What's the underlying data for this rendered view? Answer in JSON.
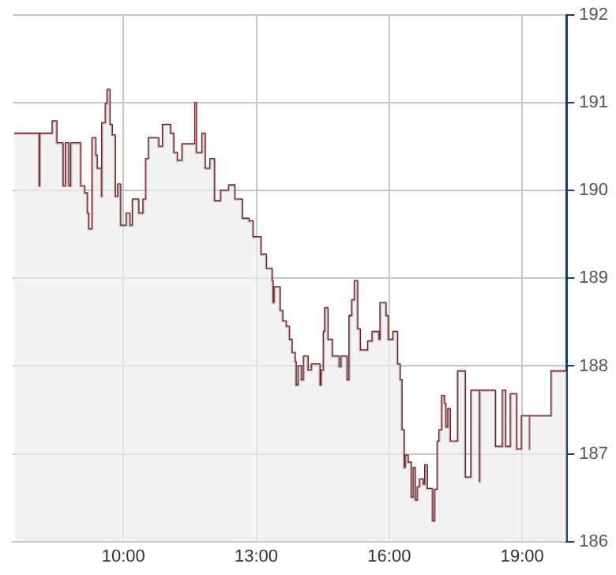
{
  "chart_data": {
    "type": "step",
    "grid": true,
    "x": [
      7.54,
      8.03,
      8.09,
      8.12,
      8.4,
      8.49,
      8.63,
      8.7,
      8.76,
      8.82,
      9.03,
      9.12,
      9.18,
      9.21,
      9.3,
      9.37,
      9.4,
      9.5,
      9.52,
      9.6,
      9.64,
      9.69,
      9.74,
      9.81,
      9.88,
      9.93,
      10.07,
      10.14,
      10.21,
      10.34,
      10.45,
      10.51,
      10.57,
      10.79,
      10.89,
      11.06,
      11.13,
      11.21,
      11.33,
      11.62,
      11.64,
      11.78,
      11.84,
      11.96,
      12.05,
      12.2,
      12.38,
      12.51,
      12.68,
      12.83,
      12.92,
      13.1,
      13.22,
      13.35,
      13.37,
      13.41,
      13.53,
      13.59,
      13.67,
      13.74,
      13.8,
      13.87,
      13.89,
      13.95,
      14.01,
      14.07,
      14.16,
      14.25,
      14.43,
      14.47,
      14.52,
      14.55,
      14.61,
      14.71,
      14.86,
      14.92,
      15.04,
      15.1,
      15.16,
      15.22,
      15.28,
      15.34,
      15.52,
      15.62,
      15.76,
      15.8,
      15.92,
      15.97,
      16.09,
      16.18,
      16.24,
      16.28,
      16.33,
      16.37,
      16.42,
      16.49,
      16.55,
      16.58,
      16.64,
      16.69,
      16.76,
      16.81,
      16.85,
      16.97,
      17.03,
      17.09,
      17.13,
      17.19,
      17.24,
      17.27,
      17.33,
      17.37,
      17.55,
      17.71,
      17.85,
      18.03,
      18.05,
      18.39,
      18.56,
      18.62,
      18.74,
      18.87,
      18.99,
      19.16,
      19.17,
      19.66,
      20.0
    ],
    "series": [
      {
        "type": "area",
        "color": "#ececec",
        "values": [
          190.65,
          190.65,
          190.05,
          190.65,
          190.79,
          190.54,
          190.05,
          190.54,
          190.05,
          190.54,
          190.05,
          189.97,
          189.74,
          189.56,
          190.6,
          190.4,
          190.25,
          189.93,
          190.77,
          190.99,
          191.15,
          190.75,
          190.63,
          189.93,
          190.07,
          189.6,
          189.74,
          189.6,
          189.9,
          189.74,
          189.9,
          190.36,
          190.6,
          190.5,
          190.75,
          190.65,
          190.43,
          190.34,
          190.53,
          191.0,
          190.43,
          190.65,
          190.25,
          190.36,
          189.88,
          190.0,
          190.06,
          189.9,
          189.68,
          189.65,
          189.47,
          189.27,
          189.11,
          188.97,
          188.72,
          188.9,
          188.63,
          188.51,
          188.45,
          188.3,
          188.15,
          188.05,
          187.78,
          188.0,
          187.84,
          188.11,
          187.95,
          188.02,
          187.78,
          187.95,
          188.39,
          188.66,
          188.3,
          188.11,
          187.99,
          188.11,
          187.84,
          188.57,
          188.75,
          188.97,
          188.42,
          188.18,
          188.28,
          188.39,
          188.3,
          188.72,
          188.57,
          188.3,
          188.39,
          188.02,
          187.84,
          187.27,
          186.84,
          186.98,
          186.9,
          186.5,
          186.84,
          186.47,
          186.62,
          186.71,
          186.65,
          186.87,
          186.6,
          186.23,
          186.59,
          187.14,
          187.27,
          187.66,
          187.57,
          187.3,
          187.51,
          187.14,
          187.94,
          186.73,
          187.72,
          186.68,
          187.72,
          187.08,
          187.72,
          187.08,
          187.68,
          187.05,
          187.43,
          187.05,
          187.43,
          187.94,
          187.94
        ]
      },
      {
        "type": "step",
        "color": "#6b1f24",
        "values": [
          190.65,
          190.65,
          190.05,
          190.65,
          190.79,
          190.54,
          190.05,
          190.54,
          190.05,
          190.54,
          190.05,
          189.97,
          189.74,
          189.56,
          190.6,
          190.4,
          190.25,
          189.93,
          190.77,
          190.99,
          191.15,
          190.75,
          190.63,
          189.93,
          190.07,
          189.6,
          189.74,
          189.6,
          189.9,
          189.74,
          189.9,
          190.36,
          190.6,
          190.5,
          190.75,
          190.65,
          190.43,
          190.34,
          190.53,
          191.0,
          190.43,
          190.65,
          190.25,
          190.36,
          189.88,
          190.0,
          190.06,
          189.9,
          189.68,
          189.65,
          189.47,
          189.27,
          189.11,
          188.97,
          188.72,
          188.9,
          188.63,
          188.51,
          188.45,
          188.3,
          188.15,
          188.05,
          187.78,
          188.0,
          187.84,
          188.11,
          187.95,
          188.02,
          187.78,
          187.95,
          188.39,
          188.66,
          188.3,
          188.11,
          187.99,
          188.11,
          187.84,
          188.57,
          188.75,
          188.97,
          188.42,
          188.18,
          188.28,
          188.39,
          188.3,
          188.72,
          188.57,
          188.3,
          188.39,
          188.02,
          187.84,
          187.27,
          186.84,
          186.98,
          186.9,
          186.5,
          186.84,
          186.47,
          186.62,
          186.71,
          186.65,
          186.87,
          186.6,
          186.23,
          186.59,
          187.14,
          187.27,
          187.66,
          187.57,
          187.3,
          187.51,
          187.14,
          187.94,
          186.73,
          187.72,
          186.68,
          187.72,
          187.08,
          187.72,
          187.08,
          187.68,
          187.05,
          187.43,
          187.05,
          187.43,
          187.94,
          187.94
        ]
      }
    ],
    "xlim": [
      7.5,
      20
    ],
    "xticks": [
      {
        "value": 10,
        "label": "10:00"
      },
      {
        "value": 13,
        "label": "13:00"
      },
      {
        "value": 16,
        "label": "16:00"
      },
      {
        "value": 19,
        "label": "19:00"
      }
    ],
    "ylim": [
      186,
      192
    ],
    "yticks": [
      186,
      187,
      188,
      189,
      190,
      191,
      192
    ]
  }
}
